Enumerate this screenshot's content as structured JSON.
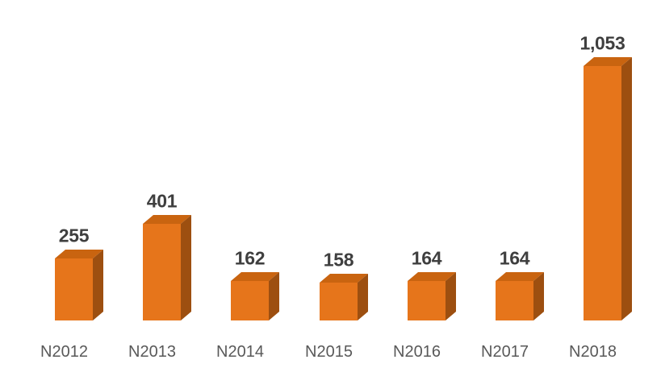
{
  "background_color": "#FFFFFF",
  "chart_data": {
    "type": "bar",
    "style": "3d-column",
    "title": "",
    "xlabel": "",
    "ylabel": "",
    "categories": [
      "N2012",
      "N2013",
      "N2014",
      "N2015",
      "N2016",
      "N2017",
      "N2018"
    ],
    "series": [
      {
        "name": "count",
        "values": [
          255,
          401,
          162,
          158,
          164,
          164,
          1053
        ]
      }
    ],
    "value_labels": [
      "255",
      "401",
      "162",
      "158",
      "164",
      "164",
      "1,053"
    ],
    "ylim": [
      0,
      1100
    ],
    "grid": false,
    "legend": false,
    "axis_lines": false,
    "colors": {
      "bar_front": "#E6751B",
      "bar_top": "#C96410",
      "bar_side": "#9D4F10",
      "value_label": "#3F3F3F",
      "category_label": "#595959"
    }
  }
}
